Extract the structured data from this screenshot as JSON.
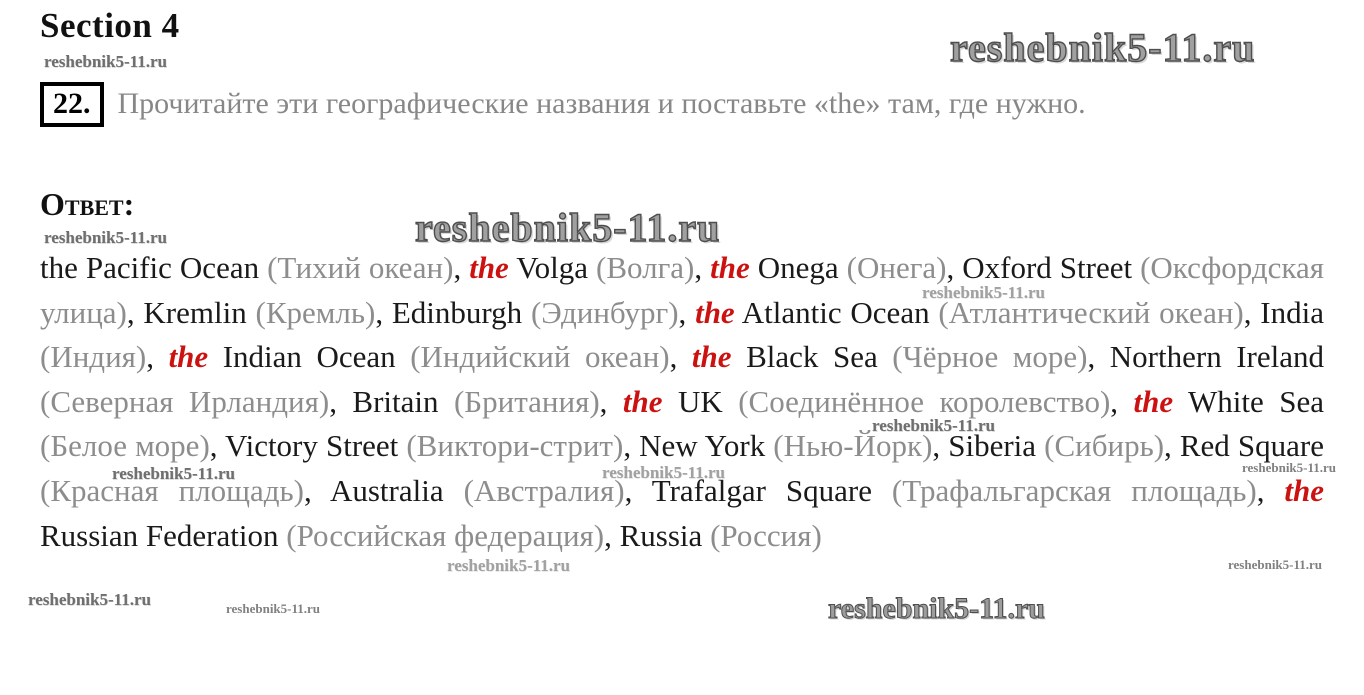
{
  "watermark": {
    "text": "reshebnik5-11.ru"
  },
  "header": {
    "section_title": "Section 4"
  },
  "task": {
    "number": "22.",
    "text": "Прочитайте эти географические названия и поставьте «the» там, где нужно."
  },
  "answer": {
    "label": "Ответ:",
    "segments": [
      {
        "s": "en",
        "t": "the Pacific Ocean "
      },
      {
        "s": "ru",
        "t": "(Тихий океан)"
      },
      {
        "s": "en",
        "t": ", "
      },
      {
        "s": "the",
        "t": "the"
      },
      {
        "s": "en",
        "t": " Volga "
      },
      {
        "s": "ru",
        "t": "(Волга)"
      },
      {
        "s": "en",
        "t": ", "
      },
      {
        "s": "the",
        "t": "the"
      },
      {
        "s": "en",
        "t": " Onega "
      },
      {
        "s": "ru",
        "t": "(Онега)"
      },
      {
        "s": "en",
        "t": ", Oxford Street "
      },
      {
        "s": "ru",
        "t": "(Оксфордская улица)"
      },
      {
        "s": "en",
        "t": ", Kremlin "
      },
      {
        "s": "ru",
        "t": "(Кремль)"
      },
      {
        "s": "en",
        "t": ", Edinburgh "
      },
      {
        "s": "ru",
        "t": "(Эдинбург)"
      },
      {
        "s": "en",
        "t": ", "
      },
      {
        "s": "the",
        "t": "the"
      },
      {
        "s": "en",
        "t": " Atlantic Ocean "
      },
      {
        "s": "ru",
        "t": "(Атлантический океан)"
      },
      {
        "s": "en",
        "t": ", India "
      },
      {
        "s": "ru",
        "t": "(Индия)"
      },
      {
        "s": "en",
        "t": ", "
      },
      {
        "s": "the",
        "t": "the"
      },
      {
        "s": "en",
        "t": " Indian Ocean "
      },
      {
        "s": "ru",
        "t": "(Индийский океан)"
      },
      {
        "s": "en",
        "t": ", "
      },
      {
        "s": "the",
        "t": "the"
      },
      {
        "s": "en",
        "t": " Black Sea "
      },
      {
        "s": "ru",
        "t": "(Чёрное море)"
      },
      {
        "s": "en",
        "t": ", Northern Ireland "
      },
      {
        "s": "ru",
        "t": "(Северная Ирландия)"
      },
      {
        "s": "en",
        "t": ", Britain "
      },
      {
        "s": "ru",
        "t": "(Британия)"
      },
      {
        "s": "en",
        "t": ", "
      },
      {
        "s": "the",
        "t": "the"
      },
      {
        "s": "en",
        "t": " UK "
      },
      {
        "s": "ru",
        "t": "(Соединённое королевство)"
      },
      {
        "s": "en",
        "t": ", "
      },
      {
        "s": "the",
        "t": "the"
      },
      {
        "s": "en",
        "t": " White Sea "
      },
      {
        "s": "ru",
        "t": "(Белое море)"
      },
      {
        "s": "en",
        "t": ", Victory Street "
      },
      {
        "s": "ru",
        "t": "(Виктори-стрит)"
      },
      {
        "s": "en",
        "t": ", New York "
      },
      {
        "s": "ru",
        "t": "(Нью-Йорк)"
      },
      {
        "s": "en",
        "t": ", Siberia "
      },
      {
        "s": "ru",
        "t": "(Сибирь)"
      },
      {
        "s": "en",
        "t": ", Red Square "
      },
      {
        "s": "ru",
        "t": "(Красная площадь)"
      },
      {
        "s": "en",
        "t": ", Australia "
      },
      {
        "s": "ru",
        "t": "(Австралия)"
      },
      {
        "s": "en",
        "t": ", Trafalgar Square "
      },
      {
        "s": "ru",
        "t": "(Трафальгарская площадь)"
      },
      {
        "s": "en",
        "t": ", "
      },
      {
        "s": "the",
        "t": "the"
      },
      {
        "s": "en",
        "t": " Russian Federation "
      },
      {
        "s": "ru",
        "t": "(Российская федерация)"
      },
      {
        "s": "en",
        "t": ", Russia "
      },
      {
        "s": "ru",
        "t": "(Россия)"
      }
    ]
  },
  "colors": {
    "ink": "#1a1a1a",
    "translation_gray": "#8d8d8d",
    "task_gray": "#878787",
    "red_article": "#cc1111",
    "watermark_gray": "#8a8a8a"
  }
}
